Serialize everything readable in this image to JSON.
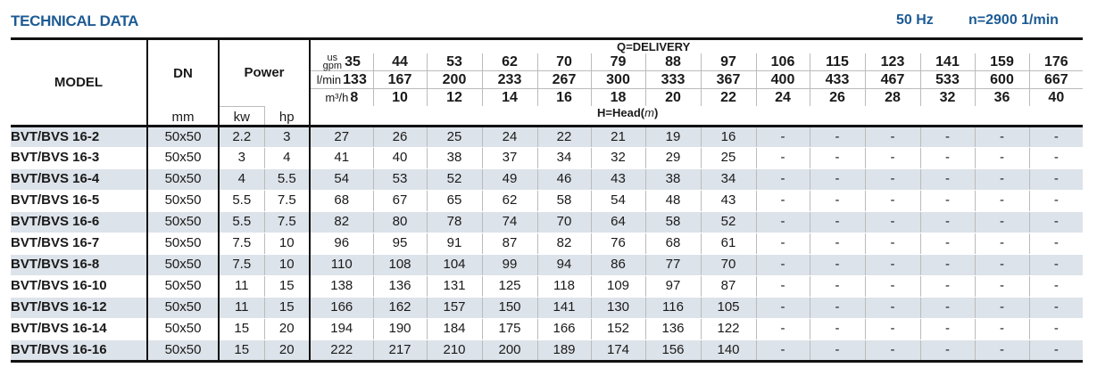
{
  "header": {
    "title": "TECHNICAL DATA",
    "frequency": "50 Hz",
    "speed": "n=2900 1/min"
  },
  "columns": {
    "model": "MODEL",
    "dn": "DN",
    "dn_unit": "mm",
    "power": "Power",
    "kw": "kw",
    "hp": "hp",
    "delivery": "Q=DELIVERY",
    "head": "H=Head",
    "head_unit": "m",
    "gpm_unit_top": "us",
    "gpm_unit_bottom": "gpm",
    "lmin_unit": "l/min",
    "m3h_unit": "m³/h"
  },
  "flow": {
    "gpm": [
      "35",
      "44",
      "53",
      "62",
      "70",
      "79",
      "88",
      "97",
      "106",
      "115",
      "123",
      "141",
      "159",
      "176"
    ],
    "lmin": [
      "133",
      "167",
      "200",
      "233",
      "267",
      "300",
      "333",
      "367",
      "400",
      "433",
      "467",
      "533",
      "600",
      "667"
    ],
    "m3h": [
      "8",
      "10",
      "12",
      "14",
      "16",
      "18",
      "20",
      "22",
      "24",
      "26",
      "28",
      "32",
      "36",
      "40"
    ]
  },
  "rows": [
    {
      "model": "BVT/BVS 16-2",
      "dn": "50x50",
      "kw": "2.2",
      "hp": "3",
      "head": [
        "27",
        "26",
        "25",
        "24",
        "22",
        "21",
        "19",
        "16",
        "-",
        "-",
        "-",
        "-",
        "-",
        "-"
      ]
    },
    {
      "model": "BVT/BVS 16-3",
      "dn": "50x50",
      "kw": "3",
      "hp": "4",
      "head": [
        "41",
        "40",
        "38",
        "37",
        "34",
        "32",
        "29",
        "25",
        "-",
        "-",
        "-",
        "-",
        "-",
        "-"
      ]
    },
    {
      "model": "BVT/BVS 16-4",
      "dn": "50x50",
      "kw": "4",
      "hp": "5.5",
      "head": [
        "54",
        "53",
        "52",
        "49",
        "46",
        "43",
        "38",
        "34",
        "-",
        "-",
        "-",
        "-",
        "-",
        "-"
      ]
    },
    {
      "model": "BVT/BVS 16-5",
      "dn": "50x50",
      "kw": "5.5",
      "hp": "7.5",
      "head": [
        "68",
        "67",
        "65",
        "62",
        "58",
        "54",
        "48",
        "43",
        "-",
        "-",
        "-",
        "-",
        "-",
        "-"
      ]
    },
    {
      "model": "BVT/BVS 16-6",
      "dn": "50x50",
      "kw": "5.5",
      "hp": "7.5",
      "head": [
        "82",
        "80",
        "78",
        "74",
        "70",
        "64",
        "58",
        "52",
        "-",
        "-",
        "-",
        "-",
        "-",
        "-"
      ]
    },
    {
      "model": "BVT/BVS 16-7",
      "dn": "50x50",
      "kw": "7.5",
      "hp": "10",
      "head": [
        "96",
        "95",
        "91",
        "87",
        "82",
        "76",
        "68",
        "61",
        "-",
        "-",
        "-",
        "-",
        "-",
        "-"
      ]
    },
    {
      "model": "BVT/BVS 16-8",
      "dn": "50x50",
      "kw": "7.5",
      "hp": "10",
      "head": [
        "110",
        "108",
        "104",
        "99",
        "94",
        "86",
        "77",
        "70",
        "-",
        "-",
        "-",
        "-",
        "-",
        "-"
      ]
    },
    {
      "model": "BVT/BVS 16-10",
      "dn": "50x50",
      "kw": "11",
      "hp": "15",
      "head": [
        "138",
        "136",
        "131",
        "125",
        "118",
        "109",
        "97",
        "87",
        "-",
        "-",
        "-",
        "-",
        "-",
        "-"
      ]
    },
    {
      "model": "BVT/BVS 16-12",
      "dn": "50x50",
      "kw": "11",
      "hp": "15",
      "head": [
        "166",
        "162",
        "157",
        "150",
        "141",
        "130",
        "116",
        "105",
        "-",
        "-",
        "-",
        "-",
        "-",
        "-"
      ]
    },
    {
      "model": "BVT/BVS 16-14",
      "dn": "50x50",
      "kw": "15",
      "hp": "20",
      "head": [
        "194",
        "190",
        "184",
        "175",
        "166",
        "152",
        "136",
        "122",
        "-",
        "-",
        "-",
        "-",
        "-",
        "-"
      ]
    },
    {
      "model": "BVT/BVS 16-16",
      "dn": "50x50",
      "kw": "15",
      "hp": "20",
      "head": [
        "222",
        "217",
        "210",
        "200",
        "189",
        "174",
        "156",
        "140",
        "-",
        "-",
        "-",
        "-",
        "-",
        "-"
      ]
    }
  ]
}
